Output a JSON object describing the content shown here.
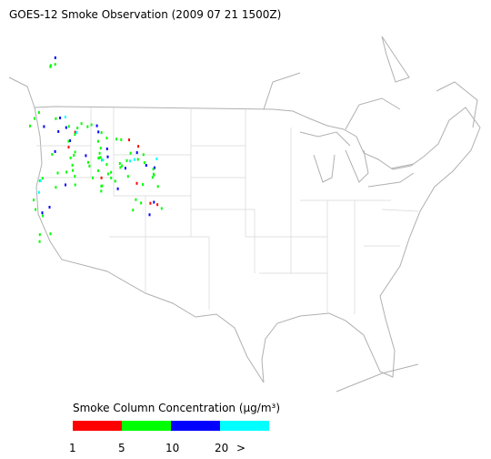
{
  "title": "GOES-12 Smoke Observation (2009 07 21  1500Z)",
  "legend": {
    "title": "Smoke Column Concentration (μg/m³)",
    "ticks": [
      1,
      5,
      10,
      20
    ],
    "overflow_label": ">",
    "colors": [
      "#ff0000",
      "#00ff00",
      "#0000ff",
      "#00ffff"
    ]
  }
}
